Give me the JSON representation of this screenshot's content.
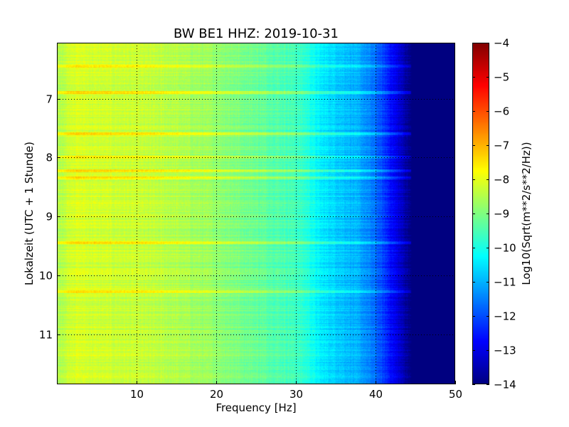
{
  "chart_data": {
    "type": "heatmap",
    "title": "BW BE1 HHZ: 2019-10-31",
    "xlabel": "Frequency [Hz]",
    "ylabel": "Lokalzeit (UTC + 1 Stunde)",
    "xlim": [
      0,
      50
    ],
    "ylim": [
      11.85,
      6.05
    ],
    "y_inverted": true,
    "x_ticks": [
      10,
      20,
      30,
      40,
      50
    ],
    "y_ticks": [
      7,
      8,
      9,
      10,
      11
    ],
    "grid": true,
    "colormap": "jet",
    "colorbar": {
      "label": "Log10(Sqrt(m**2/s**2/Hz))",
      "range": [
        -14,
        -4
      ],
      "ticks": [
        -4,
        -5,
        -6,
        -7,
        -8,
        -9,
        -10,
        -11,
        -12,
        -13,
        -14
      ]
    },
    "frequency_profile": {
      "frequency_hz": [
        0,
        2,
        5,
        10,
        15,
        20,
        25,
        30,
        31.5,
        33,
        36,
        38,
        40,
        41.5,
        43,
        44.5,
        50
      ],
      "log10_amplitude": [
        -8.6,
        -8.1,
        -8.2,
        -8.3,
        -8.5,
        -8.8,
        -9.2,
        -9.6,
        -9.9,
        -10.4,
        -10.8,
        -11.1,
        -11.7,
        -12.4,
        -13.2,
        -14,
        -14
      ]
    },
    "strong_rows_local_hour": [
      6.45,
      6.9,
      7.6,
      8.0,
      8.22,
      8.35,
      9.45,
      10.28
    ]
  }
}
